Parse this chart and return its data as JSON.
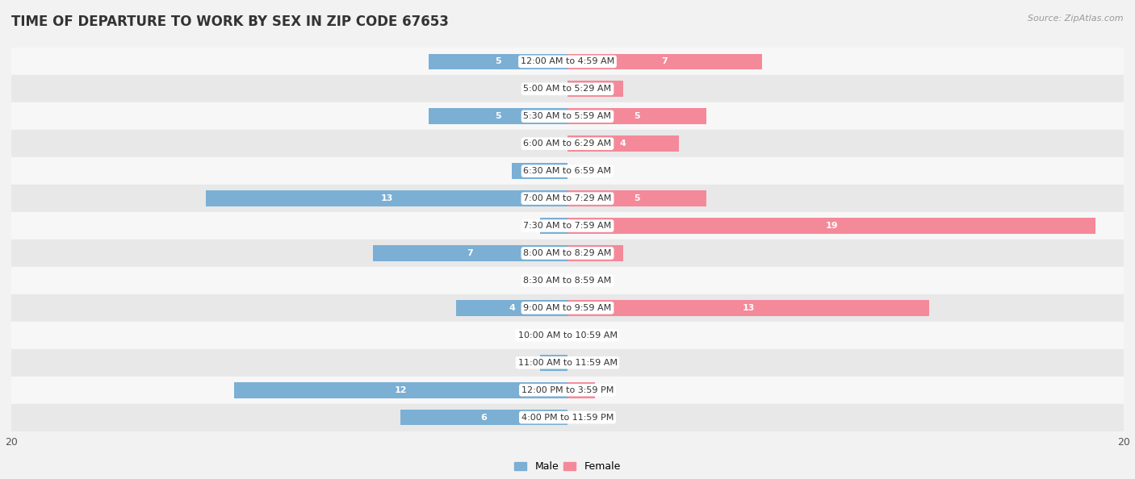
{
  "title": "TIME OF DEPARTURE TO WORK BY SEX IN ZIP CODE 67653",
  "source": "Source: ZipAtlas.com",
  "categories": [
    "12:00 AM to 4:59 AM",
    "5:00 AM to 5:29 AM",
    "5:30 AM to 5:59 AM",
    "6:00 AM to 6:29 AM",
    "6:30 AM to 6:59 AM",
    "7:00 AM to 7:29 AM",
    "7:30 AM to 7:59 AM",
    "8:00 AM to 8:29 AM",
    "8:30 AM to 8:59 AM",
    "9:00 AM to 9:59 AM",
    "10:00 AM to 10:59 AM",
    "11:00 AM to 11:59 AM",
    "12:00 PM to 3:59 PM",
    "4:00 PM to 11:59 PM"
  ],
  "male_values": [
    5,
    0,
    5,
    0,
    2,
    13,
    1,
    7,
    0,
    4,
    0,
    1,
    12,
    6
  ],
  "female_values": [
    7,
    2,
    5,
    4,
    0,
    5,
    19,
    2,
    0,
    13,
    0,
    0,
    1,
    0
  ],
  "male_color": "#7bafd4",
  "female_color": "#f4899a",
  "background_color": "#f2f2f2",
  "row_bg_light": "#f7f7f7",
  "row_bg_dark": "#e8e8e8",
  "xlim": 20,
  "bar_height": 0.58,
  "title_fontsize": 12,
  "source_fontsize": 8,
  "category_fontsize": 8,
  "value_fontsize": 8,
  "white_text_threshold": 4,
  "xtick_positions": [
    -20,
    20
  ],
  "xtick_labels": [
    "20",
    "20"
  ]
}
